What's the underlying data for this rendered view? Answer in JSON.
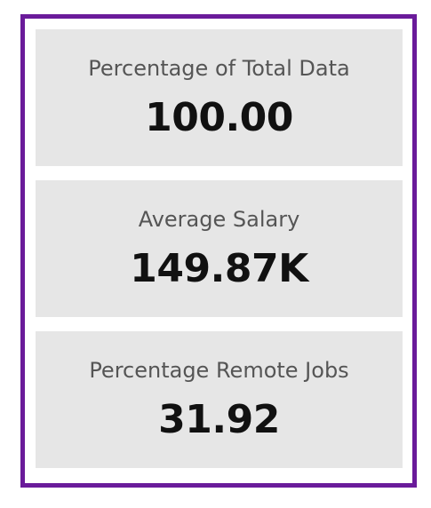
{
  "theme": {
    "border_color": "#6a1b9a",
    "card_background": "#e6e6e6",
    "label_color": "#555555",
    "value_color": "#111111"
  },
  "cards": [
    {
      "label": "Percentage of Total Data",
      "value": "100.00"
    },
    {
      "label": "Average Salary",
      "value": "149.87K"
    },
    {
      "label": "Percentage Remote Jobs",
      "value": "31.92"
    }
  ]
}
